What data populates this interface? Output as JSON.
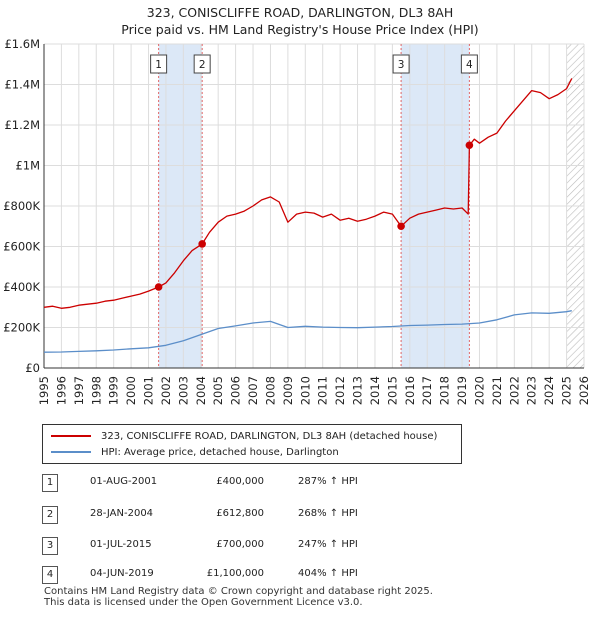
{
  "title": {
    "line1": "323, CONISCLIFFE ROAD, DARLINGTON, DL3 8AH",
    "line2": "Price paid vs. HM Land Registry's House Price Index (HPI)"
  },
  "colors": {
    "property": "#cc0000",
    "hpi": "#5b8ec9",
    "shade": "#dce8f7",
    "vline": "#e06666",
    "grid": "#dddddd"
  },
  "chart_data": {
    "type": "line",
    "title": "Price paid vs. HM Land Registry's House Price Index (HPI)",
    "xlabel": "",
    "ylabel": "",
    "xlim": [
      1995,
      2026
    ],
    "ylim": [
      0,
      1600000
    ],
    "y_ticks": [
      {
        "value": 0,
        "label": "£0"
      },
      {
        "value": 200000,
        "label": "£200K"
      },
      {
        "value": 400000,
        "label": "£400K"
      },
      {
        "value": 600000,
        "label": "£600K"
      },
      {
        "value": 800000,
        "label": "£800K"
      },
      {
        "value": 1000000,
        "label": "£1M"
      },
      {
        "value": 1200000,
        "label": "£1.2M"
      },
      {
        "value": 1400000,
        "label": "£1.4M"
      },
      {
        "value": 1600000,
        "label": "£1.6M"
      }
    ],
    "x_ticks": [
      "1995",
      "1996",
      "1997",
      "1998",
      "1999",
      "2000",
      "2001",
      "2002",
      "2003",
      "2004",
      "2005",
      "2006",
      "2007",
      "2008",
      "2009",
      "2010",
      "2011",
      "2012",
      "2013",
      "2014",
      "2015",
      "2016",
      "2017",
      "2018",
      "2019",
      "2020",
      "2021",
      "2022",
      "2023",
      "2024",
      "2025",
      "2026"
    ],
    "shaded_periods": [
      {
        "from": 2001.58,
        "to": 2004.08
      },
      {
        "from": 2015.5,
        "to": 2019.42
      }
    ],
    "forecast_start": 2025.0,
    "series": [
      {
        "name": "323, CONISCLIFFE ROAD, DARLINGTON, DL3 8AH (detached house)",
        "points": [
          [
            1995.0,
            300000
          ],
          [
            1995.5,
            305000
          ],
          [
            1996.0,
            295000
          ],
          [
            1996.5,
            300000
          ],
          [
            1997.0,
            310000
          ],
          [
            1997.5,
            315000
          ],
          [
            1998.0,
            320000
          ],
          [
            1998.5,
            330000
          ],
          [
            1999.0,
            335000
          ],
          [
            1999.5,
            345000
          ],
          [
            2000.0,
            355000
          ],
          [
            2000.5,
            365000
          ],
          [
            2001.0,
            380000
          ],
          [
            2001.58,
            400000
          ],
          [
            2002.0,
            420000
          ],
          [
            2002.5,
            470000
          ],
          [
            2003.0,
            530000
          ],
          [
            2003.5,
            580000
          ],
          [
            2004.08,
            612800
          ],
          [
            2004.5,
            670000
          ],
          [
            2005.0,
            720000
          ],
          [
            2005.5,
            750000
          ],
          [
            2006.0,
            760000
          ],
          [
            2006.5,
            775000
          ],
          [
            2007.0,
            800000
          ],
          [
            2007.5,
            830000
          ],
          [
            2008.0,
            845000
          ],
          [
            2008.5,
            820000
          ],
          [
            2009.0,
            720000
          ],
          [
            2009.5,
            760000
          ],
          [
            2010.0,
            770000
          ],
          [
            2010.5,
            765000
          ],
          [
            2011.0,
            745000
          ],
          [
            2011.5,
            760000
          ],
          [
            2012.0,
            730000
          ],
          [
            2012.5,
            740000
          ],
          [
            2013.0,
            725000
          ],
          [
            2013.5,
            735000
          ],
          [
            2014.0,
            750000
          ],
          [
            2014.5,
            770000
          ],
          [
            2015.0,
            760000
          ],
          [
            2015.5,
            700000
          ],
          [
            2016.0,
            740000
          ],
          [
            2016.5,
            760000
          ],
          [
            2017.0,
            770000
          ],
          [
            2017.5,
            780000
          ],
          [
            2018.0,
            790000
          ],
          [
            2018.5,
            785000
          ],
          [
            2019.0,
            790000
          ],
          [
            2019.35,
            760000
          ],
          [
            2019.42,
            1100000
          ],
          [
            2019.7,
            1130000
          ],
          [
            2020.0,
            1110000
          ],
          [
            2020.5,
            1140000
          ],
          [
            2021.0,
            1160000
          ],
          [
            2021.5,
            1220000
          ],
          [
            2022.0,
            1270000
          ],
          [
            2022.5,
            1320000
          ],
          [
            2023.0,
            1370000
          ],
          [
            2023.5,
            1360000
          ],
          [
            2024.0,
            1330000
          ],
          [
            2024.5,
            1350000
          ],
          [
            2025.0,
            1380000
          ],
          [
            2025.3,
            1430000
          ]
        ]
      },
      {
        "name": "HPI: Average price, detached house, Darlington",
        "points": [
          [
            1995.0,
            78000
          ],
          [
            1996.0,
            79000
          ],
          [
            1997.0,
            82000
          ],
          [
            1998.0,
            85000
          ],
          [
            1999.0,
            89000
          ],
          [
            2000.0,
            95000
          ],
          [
            2001.0,
            100000
          ],
          [
            2002.0,
            112000
          ],
          [
            2003.0,
            135000
          ],
          [
            2004.0,
            165000
          ],
          [
            2005.0,
            195000
          ],
          [
            2006.0,
            208000
          ],
          [
            2007.0,
            222000
          ],
          [
            2008.0,
            230000
          ],
          [
            2009.0,
            200000
          ],
          [
            2010.0,
            206000
          ],
          [
            2011.0,
            202000
          ],
          [
            2012.0,
            200000
          ],
          [
            2013.0,
            199000
          ],
          [
            2014.0,
            202000
          ],
          [
            2015.0,
            205000
          ],
          [
            2016.0,
            210000
          ],
          [
            2017.0,
            212000
          ],
          [
            2018.0,
            215000
          ],
          [
            2019.0,
            217000
          ],
          [
            2020.0,
            222000
          ],
          [
            2021.0,
            238000
          ],
          [
            2022.0,
            262000
          ],
          [
            2023.0,
            272000
          ],
          [
            2024.0,
            270000
          ],
          [
            2025.0,
            278000
          ],
          [
            2025.3,
            283000
          ]
        ]
      }
    ],
    "sales": [
      {
        "id": "1",
        "x": 2001.58,
        "y": 400000
      },
      {
        "id": "2",
        "x": 2004.08,
        "y": 612800
      },
      {
        "id": "3",
        "x": 2015.5,
        "y": 700000
      },
      {
        "id": "4",
        "x": 2019.42,
        "y": 1100000
      }
    ]
  },
  "legend": {
    "property_label": "323, CONISCLIFFE ROAD, DARLINGTON, DL3 8AH (detached house)",
    "hpi_label": "HPI: Average price, detached house, Darlington"
  },
  "transactions": [
    {
      "id": "1",
      "date": "01-AUG-2001",
      "price": "£400,000",
      "hpi": "287% ↑ HPI"
    },
    {
      "id": "2",
      "date": "28-JAN-2004",
      "price": "£612,800",
      "hpi": "268% ↑ HPI"
    },
    {
      "id": "3",
      "date": "01-JUL-2015",
      "price": "£700,000",
      "hpi": "247% ↑ HPI"
    },
    {
      "id": "4",
      "date": "04-JUN-2019",
      "price": "£1,100,000",
      "hpi": "404% ↑ HPI"
    }
  ],
  "footer": {
    "line1": "Contains HM Land Registry data © Crown copyright and database right 2025.",
    "line2": "This data is licensed under the Open Government Licence v3.0."
  }
}
